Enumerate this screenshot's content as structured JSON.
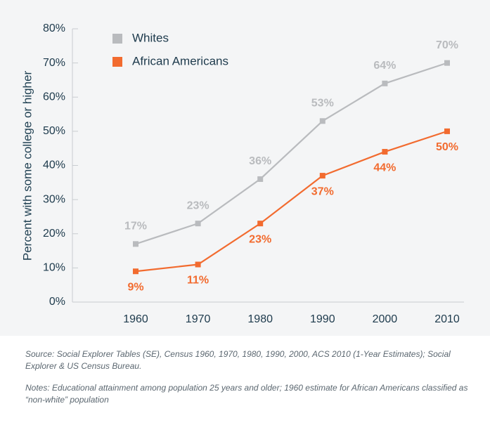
{
  "chart_data": {
    "type": "line",
    "y_label": "Percent with some college or higher",
    "categories": [
      "1960",
      "1970",
      "1980",
      "1990",
      "2000",
      "2010"
    ],
    "series": [
      {
        "name": "Whites",
        "color": "#b9bbbe",
        "values": [
          17,
          23,
          36,
          53,
          64,
          70
        ],
        "value_labels": [
          "17%",
          "23%",
          "36%",
          "53%",
          "64%",
          "70%"
        ]
      },
      {
        "name": "African Americans",
        "color": "#f26b2f",
        "values": [
          9,
          11,
          23,
          37,
          44,
          50
        ],
        "value_labels": [
          "9%",
          "11%",
          "23%",
          "37%",
          "44%",
          "50%"
        ]
      }
    ],
    "ylim": [
      0,
      80
    ],
    "yticks": [
      {
        "value": 0,
        "label": "0%"
      },
      {
        "value": 10,
        "label": "10%"
      },
      {
        "value": 20,
        "label": "20%"
      },
      {
        "value": 30,
        "label": "30%"
      },
      {
        "value": 40,
        "label": "40%"
      },
      {
        "value": 50,
        "label": "50%"
      },
      {
        "value": 60,
        "label": "60%"
      },
      {
        "value": 70,
        "label": "70%"
      },
      {
        "value": 80,
        "label": "80%"
      }
    ],
    "legend": "upper left",
    "source": "Source: Social Explorer Tables (SE), Census 1960, 1970, 1980, 1990, 2000, ACS 2010 (1-Year Estimates); Social Explorer & US Census Bureau.",
    "notes": "Notes: Educational attainment among population 25 years and older; 1960 estimate for African Americans classified as “non-white” population"
  }
}
